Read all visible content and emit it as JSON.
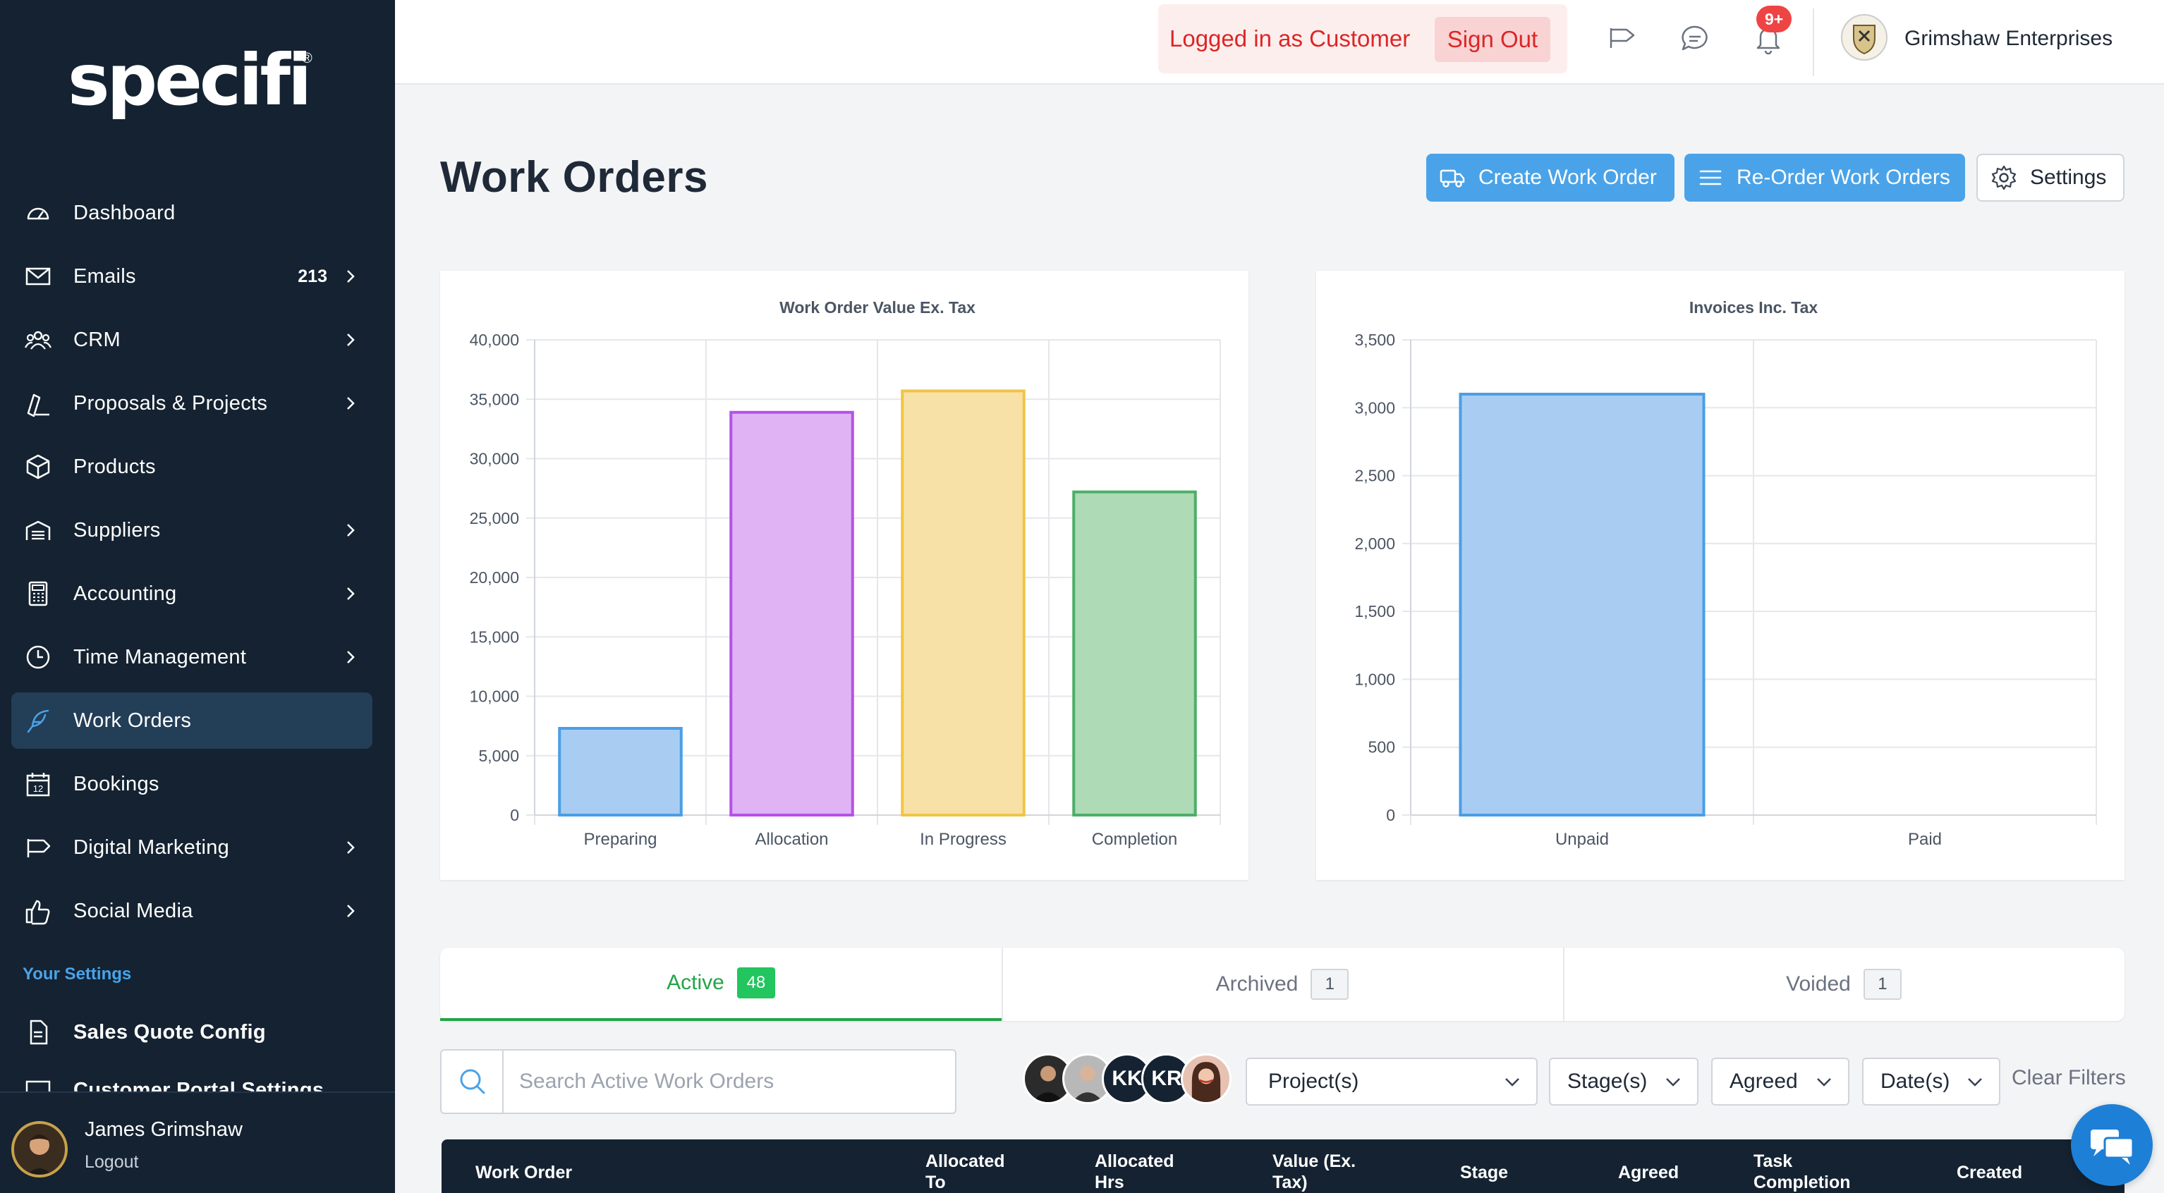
{
  "sidebar": {
    "logo_text": "specifi",
    "logo_reg": "®",
    "items": [
      {
        "label": "Dashboard",
        "icon": "gauge-icon"
      },
      {
        "label": "Emails",
        "icon": "envelope-icon",
        "badge": "213",
        "chevron": true
      },
      {
        "label": "CRM",
        "icon": "users-icon",
        "chevron": true
      },
      {
        "label": "Proposals & Projects",
        "icon": "pen-ruler-icon",
        "chevron": true
      },
      {
        "label": "Products",
        "icon": "box-icon"
      },
      {
        "label": "Suppliers",
        "icon": "warehouse-icon",
        "chevron": true
      },
      {
        "label": "Accounting",
        "icon": "calculator-icon",
        "chevron": true
      },
      {
        "label": "Time Management",
        "icon": "clock-icon",
        "chevron": true
      },
      {
        "label": "Work Orders",
        "icon": "feather-icon",
        "active": true
      },
      {
        "label": "Bookings",
        "icon": "calendar-icon",
        "calendar_day": "12"
      },
      {
        "label": "Digital Marketing",
        "icon": "megaphone-icon",
        "chevron": true
      },
      {
        "label": "Social Media",
        "icon": "thumbs-up-icon",
        "chevron": true
      }
    ],
    "settings_heading": "Your Settings",
    "settings_items": [
      {
        "label": "Sales Quote Config",
        "icon": "document-icon"
      },
      {
        "label": "Customer Portal Settings",
        "icon": "monitor-icon"
      }
    ],
    "user": {
      "name": "James Grimshaw",
      "logout": "Logout"
    }
  },
  "topbar": {
    "login_text": "Logged in as Customer",
    "sign_out": "Sign Out",
    "notification_badge": "9+",
    "company_name": "Grimshaw Enterprises"
  },
  "page": {
    "title": "Work Orders",
    "buttons": {
      "create": "Create Work Order",
      "reorder": "Re-Order Work Orders",
      "settings": "Settings"
    }
  },
  "chart_data": [
    {
      "type": "bar",
      "title": "Work Order Value Ex. Tax",
      "categories": [
        "Preparing",
        "Allocation",
        "In Progress",
        "Completion"
      ],
      "values": [
        7300,
        33900,
        35700,
        27200
      ],
      "ylim": [
        0,
        40000
      ],
      "yticks": [
        "0",
        "5,000",
        "10,000",
        "15,000",
        "20,000",
        "25,000",
        "30,000",
        "35,000",
        "40,000"
      ],
      "ytick_values": [
        0,
        5000,
        10000,
        15000,
        20000,
        25000,
        30000,
        35000,
        40000
      ],
      "colors": [
        {
          "fill": "#a9cdf2",
          "stroke": "#4a9ee6"
        },
        {
          "fill": "#e0b3f5",
          "stroke": "#b651e6"
        },
        {
          "fill": "#f8e1a6",
          "stroke": "#f0c445"
        },
        {
          "fill": "#aedbb6",
          "stroke": "#4caf68"
        }
      ],
      "grid": true
    },
    {
      "type": "bar",
      "title": "Invoices Inc. Tax",
      "categories": [
        "Unpaid",
        "Paid"
      ],
      "values": [
        3100,
        0
      ],
      "ylim": [
        0,
        3500
      ],
      "yticks": [
        "0",
        "500",
        "1,000",
        "1,500",
        "2,000",
        "2,500",
        "3,000",
        "3,500"
      ],
      "ytick_values": [
        0,
        500,
        1000,
        1500,
        2000,
        2500,
        3000,
        3500
      ],
      "colors": [
        {
          "fill": "#a9cdf2",
          "stroke": "#4a9ee6"
        },
        {
          "fill": "#a9cdf2",
          "stroke": "#4a9ee6"
        }
      ],
      "grid": true
    }
  ],
  "tabs": [
    {
      "label": "Active",
      "count": "48",
      "active": true
    },
    {
      "label": "Archived",
      "count": "1"
    },
    {
      "label": "Voided",
      "count": "1"
    }
  ],
  "filters": {
    "search_placeholder": "Search Active Work Orders",
    "avatars": [
      {
        "type": "photo",
        "color": "#2b2b2b"
      },
      {
        "type": "photo",
        "color": "#9a9a9a"
      },
      {
        "type": "initials",
        "text": "KK",
        "color": "#142231"
      },
      {
        "type": "initials",
        "text": "KR",
        "color": "#142231"
      },
      {
        "type": "photo",
        "color": "#c96a4a"
      }
    ],
    "projects": "Project(s)",
    "stages": "Stage(s)",
    "agreed": "Agreed",
    "dates": "Date(s)",
    "clear": "Clear Filters"
  },
  "table": {
    "headers": [
      "Work Order",
      "Allocated To",
      "Allocated Hrs",
      "Value (Ex. Tax)",
      "Stage",
      "Agreed",
      "Task Completion",
      "Created"
    ]
  },
  "colors": {
    "sidebar_bg": "#142231",
    "accent_blue": "#4aa3e8",
    "accent_green": "#22a447",
    "danger": "#dc2626"
  }
}
